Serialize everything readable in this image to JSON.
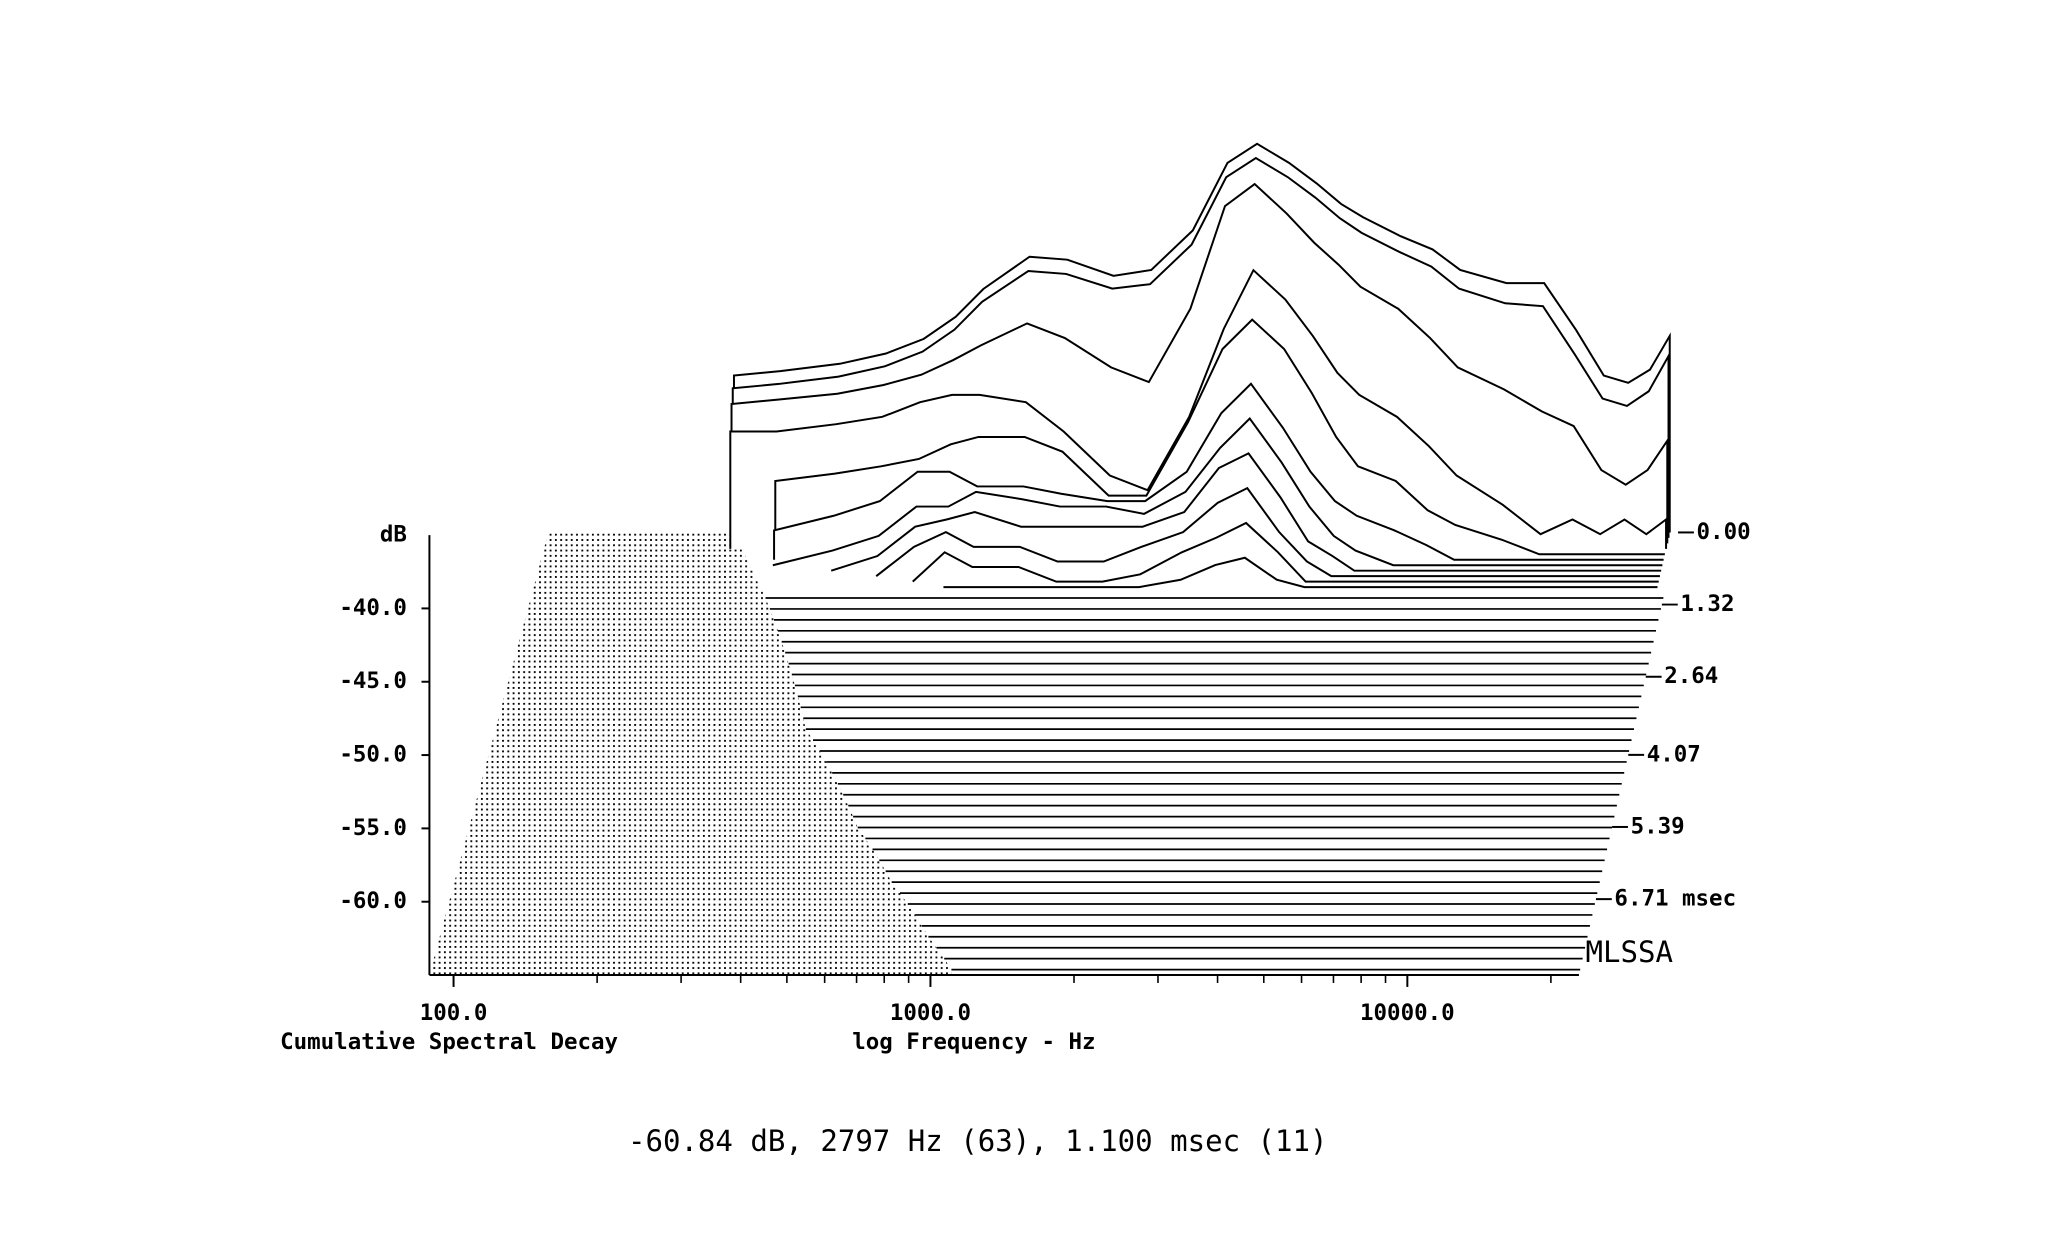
{
  "chart_data": {
    "type": "waterfall",
    "title": "Cumulative Spectral Decay",
    "x_label": "log Frequency - Hz",
    "y_label": "dB",
    "footer": "-60.84 dB, 2797 Hz (63), 1.100 msec (11)",
    "brand": "MLSSA",
    "log_x": true,
    "color": "#000000",
    "xlim": [
      89,
      22900
    ],
    "xticks": [
      {
        "value": 100,
        "label": "100.0"
      },
      {
        "value": 1000,
        "label": "1000.0"
      },
      {
        "value": 10000,
        "label": "10000.0"
      }
    ],
    "xminorticks": [
      200,
      300,
      400,
      500,
      600,
      700,
      800,
      900,
      2000,
      3000,
      4000,
      5000,
      6000,
      7000,
      8000,
      9000,
      20000
    ],
    "ylim": [
      -65,
      -35
    ],
    "yticks": [
      {
        "value": -40,
        "label": "-40.0"
      },
      {
        "value": -45,
        "label": "-45.0"
      },
      {
        "value": -50,
        "label": "-50.0"
      },
      {
        "value": -55,
        "label": "-55.0"
      },
      {
        "value": -60,
        "label": "-60.0"
      }
    ],
    "tlim": [
      0,
      8.1
    ],
    "tticks": [
      {
        "value": 0,
        "label": "0.00"
      },
      1.32,
      2.64,
      4.07,
      5.39,
      {
        "value": 6.71,
        "label": "6.71 msec"
      }
    ],
    "x": [
      240,
      300,
      400,
      500,
      600,
      700,
      800,
      1000,
      1200,
      1500,
      1800,
      2200,
      2600,
      3000,
      3500,
      4000,
      4500,
      5000,
      6000,
      7000,
      8000,
      10000,
      12000,
      14000,
      16000,
      18000,
      20000,
      22000
    ],
    "slices": [
      {
        "t": 0,
        "values": [
          -54.3,
          -54.0,
          -53.5,
          -52.8,
          -51.8,
          -50.3,
          -48.4,
          -46.2,
          -46.4,
          -47.5,
          -47.1,
          -44.4,
          -39.8,
          -38.5,
          -39.8,
          -41.2,
          -42.6,
          -43.5,
          -44.8,
          -45.7,
          -47.1,
          -48.0,
          -48.0,
          -51.2,
          -54.3,
          -54.8,
          -53.9,
          -51.6
        ]
      },
      {
        "t": 0.1,
        "values": [
          -54.8,
          -54.5,
          -54,
          -53.3,
          -52.3,
          -50.8,
          -48.9,
          -46.8,
          -47,
          -48,
          -47.7,
          -45,
          -40.4,
          -39.1,
          -40.4,
          -41.8,
          -43.2,
          -44.2,
          -45.5,
          -46.5,
          -48,
          -49,
          -49.2,
          -52.5,
          -55.5,
          -56,
          -55,
          -52.6
        ]
      },
      {
        "t": 0.2,
        "values": [
          -55.5,
          -55.2,
          -54.8,
          -54.2,
          -53.5,
          -52.5,
          -51.5,
          -50,
          -51,
          -53,
          -54,
          -49,
          -42,
          -40.5,
          -42.5,
          -44.5,
          -46,
          -47.5,
          -49,
          -51,
          -53,
          -54.5,
          -56,
          -57,
          -60,
          -61,
          -60,
          -58
        ]
      },
      {
        "t": 0.3,
        "values": [
          -57,
          -57,
          -56.5,
          -56,
          -55,
          -54.5,
          -54.5,
          -55,
          -57,
          -60,
          -61,
          -56,
          -50,
          -46,
          -48,
          -50.5,
          -53,
          -54.5,
          -56,
          -58,
          -60,
          -62,
          -64,
          -63,
          -64,
          -63,
          -64,
          -63
        ]
      },
      {
        "t": 0.4,
        "values": [
          null,
          -60,
          -59.5,
          -59,
          -58.5,
          -57.5,
          -57,
          -57,
          -58,
          -61,
          -61,
          -56,
          -51,
          -49,
          -51,
          -54,
          -57,
          -59,
          -60,
          -62,
          -63,
          -64,
          -65,
          -65,
          -65,
          -65,
          -65,
          -65
        ]
      },
      {
        "t": 0.5,
        "values": [
          null,
          -63,
          -62,
          -61,
          -59,
          -59,
          -60,
          -60,
          -60.5,
          -61,
          -61,
          -59,
          -55,
          -53,
          -56,
          -59,
          -61,
          -62,
          -63,
          -64,
          -65,
          -65,
          -65,
          -65,
          -65,
          -65,
          -65,
          -65
        ]
      },
      {
        "t": 0.6,
        "values": [
          null,
          -65,
          -64,
          -63,
          -61,
          -61,
          -60,
          -60.5,
          -61,
          -61,
          -61.5,
          -60,
          -57,
          -55,
          -58,
          -61,
          -63,
          -64,
          -65,
          -65,
          -65,
          -65,
          -65,
          -65,
          -65,
          -65,
          -65,
          -65
        ]
      },
      {
        "t": 0.7,
        "values": [
          null,
          null,
          -65,
          -64,
          -62,
          -61.5,
          -61,
          -62,
          -62,
          -62,
          -62,
          -61,
          -58,
          -57,
          -60,
          -63,
          -64,
          -65,
          -65,
          -65,
          -65,
          -65,
          -65,
          -65,
          -65,
          -65,
          -65,
          -65
        ]
      },
      {
        "t": 0.8,
        "values": [
          null,
          null,
          null,
          -65,
          -63,
          -62,
          -63,
          -63,
          -64,
          -64,
          -63,
          -62,
          -60,
          -59,
          -62,
          -64,
          -65,
          -65,
          -65,
          -65,
          -65,
          -65,
          -65,
          -65,
          -65,
          -65,
          -65,
          -65
        ]
      },
      {
        "t": 0.9,
        "values": [
          null,
          null,
          null,
          null,
          -65,
          -63,
          -64,
          -64,
          -65,
          -65,
          -64.5,
          -63,
          -62,
          -61,
          -63,
          -65,
          -65,
          -65,
          -65,
          -65,
          -65,
          -65,
          -65,
          -65,
          -65,
          -65,
          -65,
          -65
        ]
      },
      {
        "t": 1.0,
        "values": [
          null,
          null,
          null,
          null,
          null,
          -65,
          -65,
          -65,
          -65,
          -65,
          -65,
          -64.5,
          -63.5,
          -63,
          -64.5,
          -65,
          -65,
          -65,
          -65,
          -65,
          -65,
          -65,
          -65,
          -65,
          -65,
          -65,
          -65,
          -65
        ]
      }
    ],
    "floor_t": [
      1.2,
      1.4,
      1.6,
      1.8,
      2.0,
      2.2,
      2.4,
      2.6,
      2.8,
      3.0,
      3.2,
      3.4,
      3.6,
      3.8,
      4.0,
      4.2,
      4.4,
      4.6,
      4.8,
      5.0,
      5.2,
      5.4,
      5.6,
      5.8,
      6.0,
      6.2,
      6.4,
      6.6,
      6.8,
      7.0,
      7.2,
      7.4,
      7.6,
      7.8,
      8.0
    ],
    "floor_f0": [
      300,
      310,
      320,
      330,
      340,
      350,
      360,
      370,
      380,
      390,
      400,
      410,
      420,
      440,
      460,
      480,
      500,
      520,
      540,
      560,
      580,
      600,
      630,
      660,
      690,
      720,
      750,
      790,
      830,
      870,
      910,
      950,
      1000,
      1050,
      1100
    ]
  }
}
